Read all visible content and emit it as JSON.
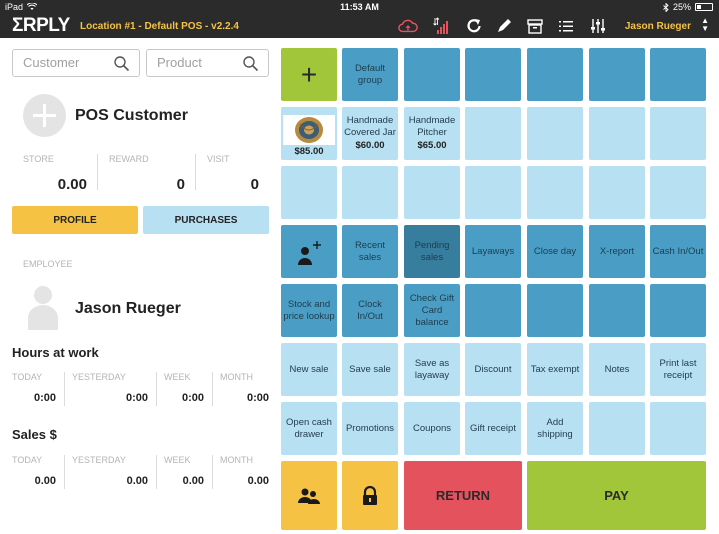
{
  "status_bar": {
    "device": "iPad",
    "time": "11:53 AM",
    "battery": "25%",
    "battery_fraction": 0.25
  },
  "header": {
    "logo": "ΣRPLY",
    "location": "Location #1 - Default POS - v2.2.4",
    "user": "Jason Rueger",
    "icons": [
      "cloud-sync-icon",
      "signal-icon",
      "refresh-icon",
      "pen-icon",
      "cash-drawer-icon",
      "menu-icon",
      "sliders-icon"
    ]
  },
  "search": {
    "customer_placeholder": "Customer",
    "product_placeholder": "Product"
  },
  "customer": {
    "name": "POS Customer",
    "stats": [
      {
        "label": "STORE",
        "value": "0.00"
      },
      {
        "label": "REWARD",
        "value": "0"
      },
      {
        "label": "VISIT",
        "value": "0"
      }
    ],
    "profile_label": "PROFILE",
    "purchases_label": "PURCHASES"
  },
  "employee": {
    "section_label": "EMPLOYEE",
    "name": "Jason Rueger"
  },
  "hours": {
    "title": "Hours at work",
    "cols": [
      {
        "label": "TODAY",
        "value": "0:00"
      },
      {
        "label": "YESTERDAY",
        "value": "0:00"
      },
      {
        "label": "WEEK",
        "value": "0:00"
      },
      {
        "label": "MONTH",
        "value": "0:00"
      }
    ]
  },
  "sales": {
    "title": "Sales $",
    "cols": [
      {
        "label": "TODAY",
        "value": "0.00"
      },
      {
        "label": "YESTERDAY",
        "value": "0.00"
      },
      {
        "label": "WEEK",
        "value": "0.00"
      },
      {
        "label": "MONTH",
        "value": "0.00"
      }
    ]
  },
  "grid": {
    "row1": {
      "default_group": "Default group"
    },
    "products": [
      {
        "name": "",
        "price": "$85.00"
      },
      {
        "name": "Handmade Covered Jar",
        "price": "$60.00"
      },
      {
        "name": "Handmade Pitcher",
        "price": "$65.00"
      }
    ],
    "row4": [
      "Recent sales",
      "Pending sales",
      "Layaways",
      "Close day",
      "X-report",
      "Cash In/Out"
    ],
    "row5": [
      "Stock and price lookup",
      "Clock In/Out",
      "Check Gift Card balance"
    ],
    "row6": [
      "New sale",
      "Save sale",
      "Save as layaway",
      "Discount",
      "Tax exempt",
      "Notes",
      "Print last receipt"
    ],
    "row7": [
      "Open cash drawer",
      "Promotions",
      "Coupons",
      "Gift receipt",
      "Add shipping"
    ],
    "return_label": "RETURN",
    "pay_label": "PAY"
  },
  "colors": {
    "dark_tile": "#4a9ec5",
    "light_tile": "#b7e0f2",
    "pressed_tile": "#377d9e",
    "green": "#a1c63a",
    "yellow": "#f5c244",
    "red": "#e4525e",
    "header": "#2b2b2b"
  }
}
